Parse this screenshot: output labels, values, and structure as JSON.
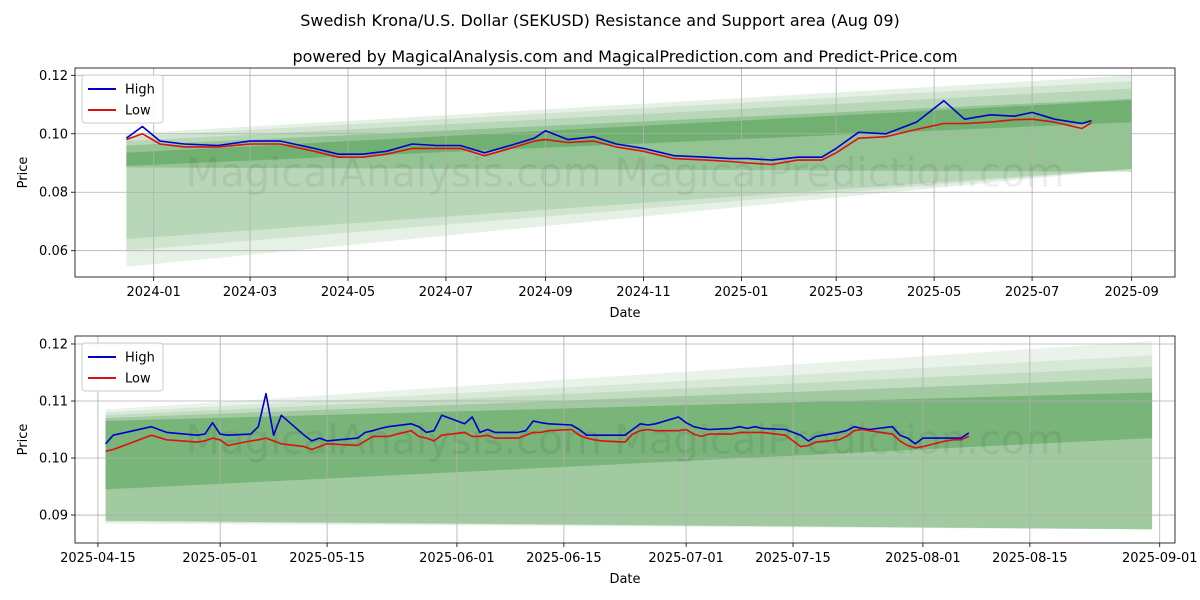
{
  "page": {
    "title": "Swedish Krona/U.S. Dollar (SEKUSD) Resistance and Support area (Aug 09)",
    "subtitle": "powered by MagicalAnalysis.com and MagicalPrediction.com and Predict-Price.com",
    "watermark": "MagicalAnalysis.com    MagicalPrediction.com"
  },
  "colors": {
    "high": "#0000cc",
    "low": "#dd1111",
    "band": "#2e8b2e",
    "grid": "#b0b0b0"
  },
  "chart_data": [
    {
      "type": "line",
      "xlabel": "Date",
      "ylabel": "Price",
      "xlim": [
        "2023-11-13",
        "2025-09-28"
      ],
      "ylim": [
        0.051,
        0.1225
      ],
      "xticks": [
        "2024-01",
        "2024-03",
        "2024-05",
        "2024-07",
        "2024-09",
        "2024-11",
        "2025-01",
        "2025-03",
        "2025-05",
        "2025-07",
        "2025-09"
      ],
      "xtick_dates": [
        "2024-01-01",
        "2024-03-01",
        "2024-05-01",
        "2024-07-01",
        "2024-09-01",
        "2024-11-01",
        "2025-01-01",
        "2025-03-01",
        "2025-05-01",
        "2025-07-01",
        "2025-09-01"
      ],
      "yticks": [
        "0.06",
        "0.08",
        "0.10",
        "0.12"
      ],
      "ytick_values": [
        0.06,
        0.08,
        0.1,
        0.12
      ],
      "legend": {
        "position": "top-left",
        "entries": [
          "High",
          "Low"
        ]
      },
      "grid": true,
      "series": [
        {
          "name": "High",
          "color": "#0000cc",
          "x": [
            "2023-12-15",
            "2023-12-25",
            "2024-01-05",
            "2024-01-20",
            "2024-02-10",
            "2024-03-01",
            "2024-03-20",
            "2024-04-10",
            "2024-04-25",
            "2024-05-10",
            "2024-05-25",
            "2024-06-10",
            "2024-06-25",
            "2024-07-10",
            "2024-07-25",
            "2024-08-10",
            "2024-08-25",
            "2024-09-01",
            "2024-09-15",
            "2024-10-01",
            "2024-10-15",
            "2024-11-01",
            "2024-11-20",
            "2024-12-10",
            "2024-12-25",
            "2025-01-05",
            "2025-01-20",
            "2025-02-05",
            "2025-02-20",
            "2025-03-01",
            "2025-03-15",
            "2025-04-01",
            "2025-04-20",
            "2025-05-07",
            "2025-05-20",
            "2025-06-05",
            "2025-06-20",
            "2025-07-01",
            "2025-07-15",
            "2025-08-01",
            "2025-08-07"
          ],
          "y": [
            0.0985,
            0.1025,
            0.0975,
            0.0965,
            0.096,
            0.0975,
            0.0975,
            0.095,
            0.093,
            0.093,
            0.094,
            0.0965,
            0.096,
            0.096,
            0.0935,
            0.096,
            0.0985,
            0.101,
            0.098,
            0.099,
            0.0965,
            0.095,
            0.0925,
            0.092,
            0.0915,
            0.0915,
            0.091,
            0.092,
            0.092,
            0.095,
            0.1005,
            0.1,
            0.104,
            0.1113,
            0.105,
            0.1065,
            0.106,
            0.1073,
            0.105,
            0.1035,
            0.1045
          ]
        },
        {
          "name": "Low",
          "color": "#dd1111",
          "x": [
            "2023-12-15",
            "2023-12-25",
            "2024-01-05",
            "2024-01-20",
            "2024-02-10",
            "2024-03-01",
            "2024-03-20",
            "2024-04-10",
            "2024-04-25",
            "2024-05-10",
            "2024-05-25",
            "2024-06-10",
            "2024-06-25",
            "2024-07-10",
            "2024-07-25",
            "2024-08-10",
            "2024-08-25",
            "2024-09-01",
            "2024-09-15",
            "2024-10-01",
            "2024-10-15",
            "2024-11-01",
            "2024-11-20",
            "2024-12-10",
            "2024-12-25",
            "2025-01-05",
            "2025-01-20",
            "2025-02-05",
            "2025-02-20",
            "2025-03-01",
            "2025-03-15",
            "2025-04-01",
            "2025-04-20",
            "2025-05-07",
            "2025-05-20",
            "2025-06-05",
            "2025-06-20",
            "2025-07-01",
            "2025-07-15",
            "2025-08-01",
            "2025-08-07"
          ],
          "y": [
            0.098,
            0.1,
            0.0965,
            0.0955,
            0.0955,
            0.0965,
            0.0965,
            0.094,
            0.092,
            0.092,
            0.093,
            0.095,
            0.095,
            0.095,
            0.0925,
            0.095,
            0.0975,
            0.098,
            0.097,
            0.0975,
            0.0955,
            0.094,
            0.0915,
            0.091,
            0.0905,
            0.09,
            0.0895,
            0.091,
            0.091,
            0.0935,
            0.0985,
            0.099,
            0.1015,
            0.1035,
            0.1035,
            0.104,
            0.1048,
            0.105,
            0.104,
            0.1018,
            0.1038
          ]
        }
      ],
      "bands": [
        {
          "x": [
            "2023-12-15",
            "2025-09-01"
          ],
          "upper": [
            0.1,
            0.12
          ],
          "lower": [
            0.0545,
            0.088
          ],
          "opacity": 0.12
        },
        {
          "x": [
            "2023-12-15",
            "2025-09-01"
          ],
          "upper": [
            0.099,
            0.118
          ],
          "lower": [
            0.06,
            0.088
          ],
          "opacity": 0.12
        },
        {
          "x": [
            "2023-12-15",
            "2025-09-01"
          ],
          "upper": [
            0.0975,
            0.1155
          ],
          "lower": [
            0.064,
            0.088
          ],
          "opacity": 0.14
        },
        {
          "x": [
            "2023-12-15",
            "2025-09-01"
          ],
          "upper": [
            0.096,
            0.112
          ],
          "lower": [
            0.0885,
            0.087
          ],
          "opacity": 0.26
        },
        {
          "x": [
            "2023-12-15",
            "2025-09-01"
          ],
          "upper": [
            0.0935,
            0.1115
          ],
          "lower": [
            0.089,
            0.104
          ],
          "opacity": 0.35
        }
      ]
    },
    {
      "type": "line",
      "xlabel": "Date",
      "ylabel": "Price",
      "xlim": [
        "2025-04-12",
        "2025-09-03"
      ],
      "ylim": [
        0.0851,
        0.1214
      ],
      "xticks": [
        "2025-04-15",
        "2025-05-01",
        "2025-05-15",
        "2025-06-01",
        "2025-06-15",
        "2025-07-01",
        "2025-07-15",
        "2025-08-01",
        "2025-08-15",
        "2025-09-01"
      ],
      "xtick_dates": [
        "2025-04-15",
        "2025-05-01",
        "2025-05-15",
        "2025-06-01",
        "2025-06-15",
        "2025-07-01",
        "2025-07-15",
        "2025-08-01",
        "2025-08-15",
        "2025-09-01"
      ],
      "yticks": [
        "0.09",
        "0.10",
        "0.11",
        "0.12"
      ],
      "ytick_values": [
        0.09,
        0.1,
        0.11,
        0.12
      ],
      "legend": {
        "position": "top-left",
        "entries": [
          "High",
          "Low"
        ]
      },
      "grid": true,
      "series": [
        {
          "name": "High",
          "color": "#0000cc",
          "x": [
            "2025-04-16",
            "2025-04-17",
            "2025-04-22",
            "2025-04-24",
            "2025-04-28",
            "2025-04-29",
            "2025-04-30",
            "2025-05-01",
            "2025-05-02",
            "2025-05-05",
            "2025-05-06",
            "2025-05-07",
            "2025-05-08",
            "2025-05-09",
            "2025-05-12",
            "2025-05-13",
            "2025-05-14",
            "2025-05-15",
            "2025-05-19",
            "2025-05-20",
            "2025-05-21",
            "2025-05-22",
            "2025-05-23",
            "2025-05-26",
            "2025-05-27",
            "2025-05-28",
            "2025-05-29",
            "2025-05-30",
            "2025-06-02",
            "2025-06-03",
            "2025-06-04",
            "2025-06-05",
            "2025-06-06",
            "2025-06-09",
            "2025-06-10",
            "2025-06-11",
            "2025-06-12",
            "2025-06-13",
            "2025-06-16",
            "2025-06-17",
            "2025-06-18",
            "2025-06-19",
            "2025-06-20",
            "2025-06-23",
            "2025-06-24",
            "2025-06-25",
            "2025-06-26",
            "2025-06-27",
            "2025-06-30",
            "2025-07-01",
            "2025-07-02",
            "2025-07-03",
            "2025-07-04",
            "2025-07-07",
            "2025-07-08",
            "2025-07-09",
            "2025-07-10",
            "2025-07-11",
            "2025-07-14",
            "2025-07-15",
            "2025-07-16",
            "2025-07-17",
            "2025-07-18",
            "2025-07-21",
            "2025-07-22",
            "2025-07-23",
            "2025-07-24",
            "2025-07-25",
            "2025-07-28",
            "2025-07-29",
            "2025-07-30",
            "2025-07-31",
            "2025-08-01",
            "2025-08-04",
            "2025-08-05",
            "2025-08-06",
            "2025-08-07"
          ],
          "y": [
            0.1025,
            0.104,
            0.1055,
            0.1045,
            0.104,
            0.1042,
            0.1062,
            0.1042,
            0.104,
            0.1042,
            0.1055,
            0.1113,
            0.104,
            0.1075,
            0.104,
            0.103,
            0.1035,
            0.103,
            0.1035,
            0.1045,
            0.1048,
            0.1052,
            0.1055,
            0.106,
            0.1055,
            0.1045,
            0.1048,
            0.1075,
            0.106,
            0.1072,
            0.1045,
            0.105,
            0.1045,
            0.1045,
            0.1048,
            0.1065,
            0.1062,
            0.106,
            0.1058,
            0.105,
            0.104,
            0.104,
            0.104,
            0.104,
            0.105,
            0.106,
            0.1058,
            0.106,
            0.1072,
            0.1062,
            0.1055,
            0.1052,
            0.105,
            0.1052,
            0.1055,
            0.1052,
            0.1055,
            0.1052,
            0.105,
            0.1045,
            0.104,
            0.103,
            0.1038,
            0.1045,
            0.1048,
            0.1055,
            0.1052,
            0.105,
            0.1055,
            0.104,
            0.1035,
            0.1025,
            0.1035,
            0.1035,
            0.1035,
            0.1035,
            0.1044
          ]
        },
        {
          "name": "Low",
          "color": "#dd1111",
          "x": [
            "2025-04-16",
            "2025-04-17",
            "2025-04-22",
            "2025-04-24",
            "2025-04-28",
            "2025-04-29",
            "2025-04-30",
            "2025-05-01",
            "2025-05-02",
            "2025-05-05",
            "2025-05-06",
            "2025-05-07",
            "2025-05-08",
            "2025-05-09",
            "2025-05-12",
            "2025-05-13",
            "2025-05-14",
            "2025-05-15",
            "2025-05-19",
            "2025-05-20",
            "2025-05-21",
            "2025-05-22",
            "2025-05-23",
            "2025-05-26",
            "2025-05-27",
            "2025-05-28",
            "2025-05-29",
            "2025-05-30",
            "2025-06-02",
            "2025-06-03",
            "2025-06-04",
            "2025-06-05",
            "2025-06-06",
            "2025-06-09",
            "2025-06-10",
            "2025-06-11",
            "2025-06-12",
            "2025-06-13",
            "2025-06-16",
            "2025-06-17",
            "2025-06-18",
            "2025-06-19",
            "2025-06-20",
            "2025-06-23",
            "2025-06-24",
            "2025-06-25",
            "2025-06-26",
            "2025-06-27",
            "2025-06-30",
            "2025-07-01",
            "2025-07-02",
            "2025-07-03",
            "2025-07-04",
            "2025-07-07",
            "2025-07-08",
            "2025-07-09",
            "2025-07-10",
            "2025-07-11",
            "2025-07-14",
            "2025-07-15",
            "2025-07-16",
            "2025-07-17",
            "2025-07-18",
            "2025-07-21",
            "2025-07-22",
            "2025-07-23",
            "2025-07-24",
            "2025-07-25",
            "2025-07-28",
            "2025-07-29",
            "2025-07-30",
            "2025-07-31",
            "2025-08-01",
            "2025-08-04",
            "2025-08-05",
            "2025-08-06",
            "2025-08-07"
          ],
          "y": [
            0.1012,
            0.1015,
            0.104,
            0.1032,
            0.1028,
            0.103,
            0.1035,
            0.1032,
            0.1022,
            0.103,
            0.1032,
            0.1035,
            0.103,
            0.1025,
            0.102,
            0.1015,
            0.102,
            0.1025,
            0.1022,
            0.103,
            0.1038,
            0.1038,
            0.1038,
            0.1048,
            0.1038,
            0.1035,
            0.103,
            0.104,
            0.1045,
            0.1038,
            0.1038,
            0.104,
            0.1035,
            0.1035,
            0.104,
            0.1045,
            0.1045,
            0.1048,
            0.105,
            0.104,
            0.1035,
            0.1032,
            0.103,
            0.1028,
            0.1042,
            0.1048,
            0.105,
            0.1048,
            0.1048,
            0.105,
            0.1042,
            0.1038,
            0.1042,
            0.1042,
            0.1045,
            0.1045,
            0.1045,
            0.1045,
            0.104,
            0.103,
            0.102,
            0.1022,
            0.1028,
            0.1032,
            0.1038,
            0.1048,
            0.105,
            0.1048,
            0.1042,
            0.103,
            0.1022,
            0.1018,
            0.102,
            0.103,
            0.1032,
            0.1032,
            0.1038
          ]
        }
      ],
      "bands": [
        {
          "x": [
            "2025-04-16",
            "2025-08-31"
          ],
          "upper": [
            0.1085,
            0.1205
          ],
          "lower": [
            0.0885,
            0.0875
          ],
          "opacity": 0.1
        },
        {
          "x": [
            "2025-04-16",
            "2025-08-31"
          ],
          "upper": [
            0.108,
            0.118
          ],
          "lower": [
            0.0888,
            0.0875
          ],
          "opacity": 0.1
        },
        {
          "x": [
            "2025-04-16",
            "2025-08-31"
          ],
          "upper": [
            0.1075,
            0.116
          ],
          "lower": [
            0.089,
            0.0875
          ],
          "opacity": 0.12
        },
        {
          "x": [
            "2025-04-16",
            "2025-08-31"
          ],
          "upper": [
            0.107,
            0.114
          ],
          "lower": [
            0.089,
            0.0875
          ],
          "opacity": 0.22
        },
        {
          "x": [
            "2025-04-16",
            "2025-08-31"
          ],
          "upper": [
            0.1065,
            0.1115
          ],
          "lower": [
            0.0945,
            0.1035
          ],
          "opacity": 0.35
        }
      ]
    }
  ]
}
